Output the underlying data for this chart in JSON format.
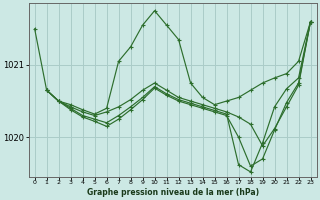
{
  "xlabel_label": "Graphe pression niveau de la mer (hPa)",
  "bg_color": "#cce8e4",
  "grid_color": "#aaccc8",
  "line_color": "#2d6e2d",
  "marker_color": "#2d6e2d",
  "ylim": [
    1019.45,
    1021.85
  ],
  "yticks": [
    1020,
    1021
  ],
  "xlim": [
    -0.5,
    23.5
  ],
  "xticks": [
    0,
    1,
    2,
    3,
    4,
    5,
    6,
    7,
    8,
    9,
    10,
    11,
    12,
    13,
    14,
    15,
    16,
    17,
    18,
    19,
    20,
    21,
    22,
    23
  ],
  "series": [
    {
      "x": [
        0,
        1,
        2,
        3,
        4,
        5,
        6,
        7,
        8,
        9,
        10,
        11,
        12,
        13,
        14,
        15,
        16,
        17,
        18,
        19,
        20,
        21,
        22,
        23
      ],
      "y": [
        1021.5,
        1020.65,
        1020.5,
        1020.45,
        1020.38,
        1020.32,
        1020.4,
        1021.05,
        1021.25,
        1021.55,
        1021.75,
        1021.55,
        1021.35,
        1020.75,
        1020.55,
        1020.45,
        1020.5,
        1020.55,
        1020.65,
        1020.75,
        1020.82,
        1020.88,
        1021.05,
        1021.6
      ]
    },
    {
      "x": [
        1,
        2,
        3,
        4,
        5,
        6,
        7,
        8,
        9,
        10,
        11,
        12,
        13,
        14,
        15,
        16,
        17,
        18,
        19,
        20,
        21,
        22,
        23
      ],
      "y": [
        1020.65,
        1020.5,
        1020.42,
        1020.35,
        1020.3,
        1020.35,
        1020.42,
        1020.52,
        1020.65,
        1020.75,
        1020.65,
        1020.55,
        1020.5,
        1020.45,
        1020.4,
        1020.35,
        1020.28,
        1020.18,
        1019.88,
        1020.12,
        1020.42,
        1020.72,
        1021.6
      ]
    },
    {
      "x": [
        1,
        2,
        3,
        4,
        5,
        6,
        7,
        8,
        9,
        10,
        11,
        12,
        13,
        14,
        15,
        16,
        17,
        18,
        19,
        20,
        21,
        22,
        23
      ],
      "y": [
        1020.65,
        1020.5,
        1020.4,
        1020.3,
        1020.25,
        1020.2,
        1020.3,
        1020.42,
        1020.55,
        1020.7,
        1020.6,
        1020.52,
        1020.47,
        1020.42,
        1020.37,
        1020.32,
        1019.62,
        1019.52,
        1019.92,
        1020.42,
        1020.67,
        1020.82,
        1021.6
      ]
    },
    {
      "x": [
        1,
        2,
        3,
        4,
        5,
        6,
        7,
        8,
        9,
        10,
        11,
        12,
        13,
        14,
        15,
        16,
        17,
        18,
        19,
        20,
        21,
        22,
        23
      ],
      "y": [
        1020.65,
        1020.5,
        1020.38,
        1020.28,
        1020.22,
        1020.15,
        1020.25,
        1020.38,
        1020.52,
        1020.68,
        1020.58,
        1020.5,
        1020.45,
        1020.4,
        1020.35,
        1020.3,
        1020.0,
        1019.6,
        1019.7,
        1020.1,
        1020.48,
        1020.75,
        1021.6
      ]
    }
  ]
}
